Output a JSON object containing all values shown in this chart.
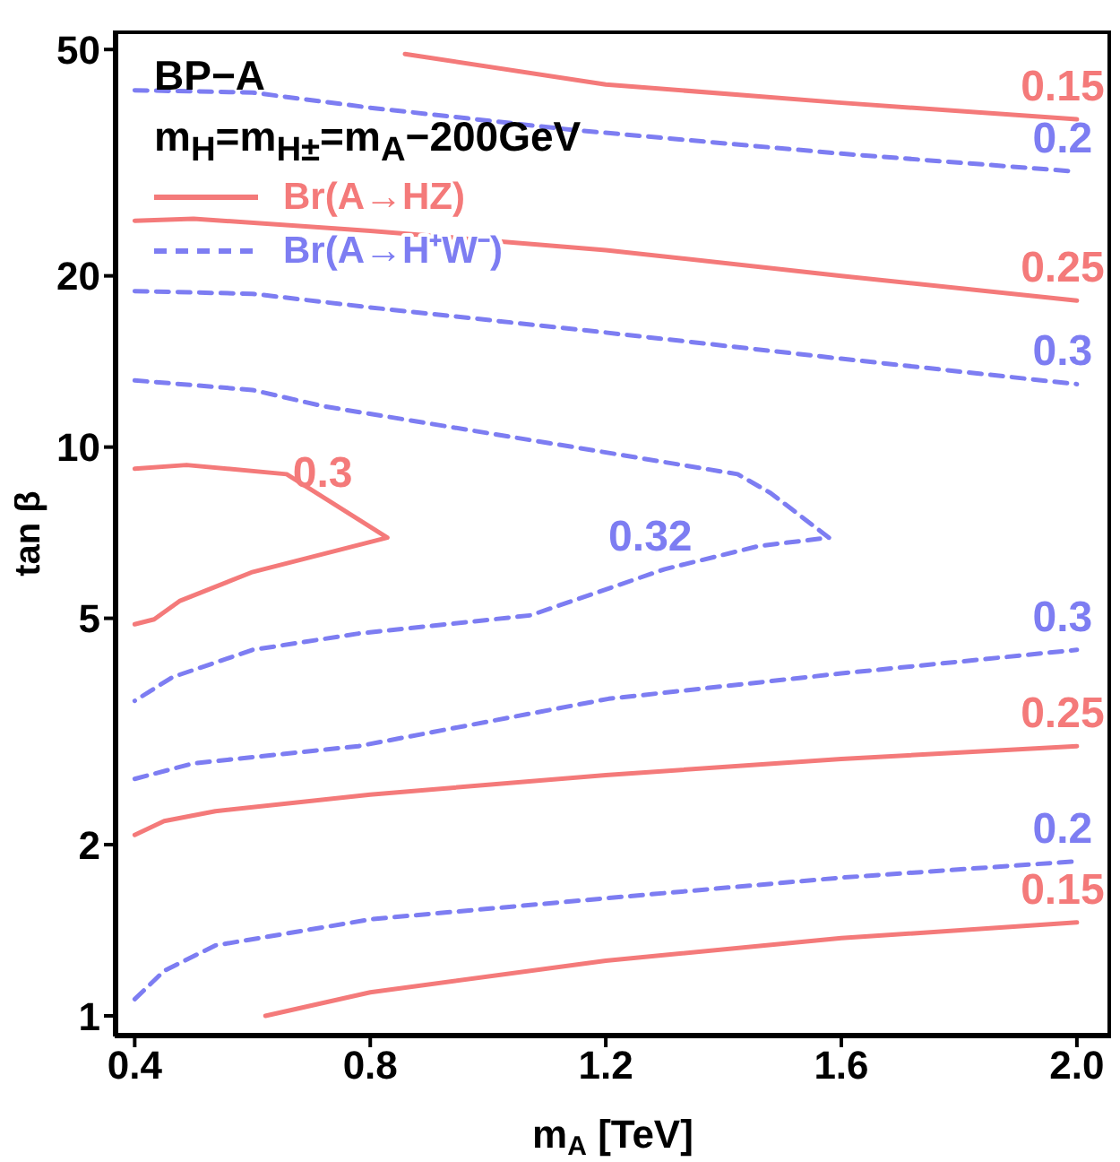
{
  "chart_data": {
    "type": "line",
    "xlabel": "m$_{A}$ [TeV]",
    "ylabel": "tan β",
    "xlim": [
      0.366,
      2.058
    ],
    "xticks": [
      0.4,
      0.8,
      1.2,
      1.6,
      {
        "value": 2,
        "label": "2.0"
      }
    ],
    "ylim": [
      0.92,
      54
    ],
    "yticks": [
      1,
      2,
      5,
      10,
      20,
      50
    ],
    "log": "y",
    "grid": false,
    "legend": "top left",
    "marker": "none",
    "series": [
      {
        "name": "Br(A→HZ)",
        "color": "#f47a7a",
        "line_style": "solid",
        "x": [
          0.859,
          1.2,
          1.6,
          2.0
        ],
        "values": [
          49.1,
          43.4,
          40.3,
          37.7
        ]
      },
      {
        "name": "Br(A→H⁺W⁻)",
        "color": "#7d7df2",
        "line_style": "dashed",
        "x": [
          0.4,
          0.6,
          0.8,
          1.145,
          1.6,
          2.0
        ],
        "values": [
          42.4,
          42,
          39.5,
          36.1,
          32.8,
          30.5
        ]
      },
      {
        "color": "#f47a7a",
        "line_style": "solid",
        "x": [
          0.4,
          0.5,
          0.8,
          1.2,
          1.6,
          2.0
        ],
        "values": [
          25,
          25.2,
          24,
          22.2,
          20,
          18.1
        ]
      },
      {
        "color": "#7d7df2",
        "line_style": "dashed",
        "x": [
          0.4,
          0.6,
          0.8,
          1.2,
          1.6,
          2.0
        ],
        "values": [
          18.8,
          18.6,
          17.6,
          15.9,
          14.3,
          12.9
        ]
      },
      {
        "color": "#7d7df2",
        "line_style": "dashed",
        "x": [
          0.4,
          0.6,
          0.72,
          1.145,
          1.424,
          1.48,
          1.579,
          1.46,
          1.3,
          1.072,
          0.78,
          0.6,
          0.464,
          0.4
        ],
        "values": [
          13.1,
          12.6,
          11.8,
          10.0,
          8.96,
          8.3,
          6.93,
          6.7,
          6.1,
          5.06,
          4.7,
          4.4,
          3.94,
          3.58
        ]
      },
      {
        "color": "#f47a7a",
        "line_style": "solid",
        "x": [
          0.4,
          0.488,
          0.658,
          0.829,
          0.598,
          0.476,
          0.433,
          0.4
        ],
        "values": [
          9.16,
          9.3,
          8.96,
          6.93,
          6.02,
          5.36,
          4.98,
          4.88
        ]
      },
      {
        "color": "#7d7df2",
        "line_style": "dashed",
        "x": [
          0.4,
          0.5,
          0.78,
          1.205,
          1.6,
          2.0
        ],
        "values": [
          2.61,
          2.78,
          2.98,
          3.61,
          4.0,
          4.4
        ]
      },
      {
        "color": "#f47a7a",
        "line_style": "solid",
        "x": [
          0.4,
          0.45,
          0.537,
          0.8,
          1.2,
          1.6,
          2.0
        ],
        "values": [
          2.08,
          2.2,
          2.29,
          2.45,
          2.65,
          2.83,
          2.98
        ]
      },
      {
        "color": "#7d7df2",
        "line_style": "dashed",
        "x": [
          0.4,
          0.45,
          0.537,
          0.804,
          1.2,
          1.6,
          2.0
        ],
        "values": [
          1.07,
          1.2,
          1.33,
          1.48,
          1.61,
          1.75,
          1.87
        ]
      },
      {
        "color": "#f47a7a",
        "line_style": "solid",
        "x": [
          0.622,
          0.8,
          1.2,
          1.6,
          2.0
        ],
        "values": [
          1.0,
          1.1,
          1.25,
          1.37,
          1.46
        ]
      }
    ],
    "annotations": [
      "BP−A",
      "m$_{H}$=m$_{H±}$=m$_{A}$−200GeV",
      {
        "text": "0.15",
        "x": 2.0,
        "y": 37.7
      },
      {
        "text": "0.2",
        "x": 2.0,
        "y": 30.5
      },
      {
        "text": "0.25",
        "x": 2.0,
        "y": 18.1
      },
      {
        "text": "0.3",
        "x": 2.0,
        "y": 12.9
      },
      {
        "text": "0.3",
        "x": 0.7435,
        "y": 7.88
      },
      {
        "text": "0.32",
        "x": 1.3,
        "y": 6.1
      },
      {
        "text": "0.3",
        "x": 2.0,
        "y": 4.4
      },
      {
        "text": "0.25",
        "x": 2.0,
        "y": 2.98
      },
      {
        "text": "0.2",
        "x": 2.0,
        "y": 1.87
      },
      {
        "text": "0.15",
        "x": 2.0,
        "y": 1.46
      }
    ]
  }
}
